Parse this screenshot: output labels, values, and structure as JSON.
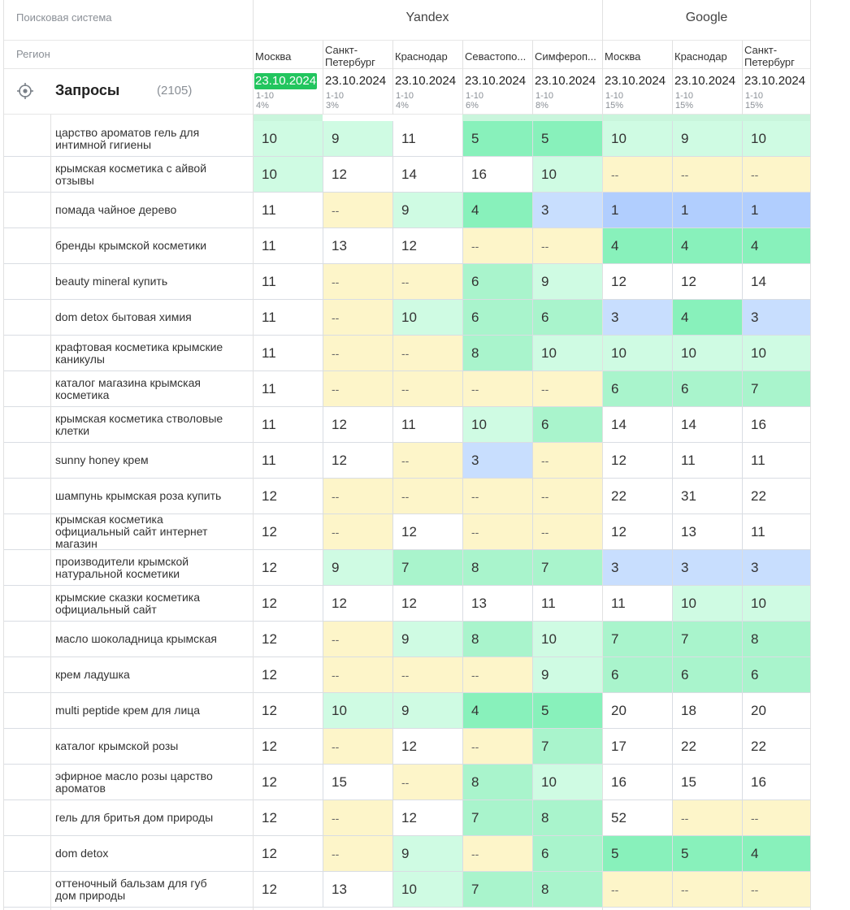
{
  "header": {
    "search_engine_label": "Поисковая система",
    "region_label": "Регион",
    "engines": [
      {
        "name": "Yandex"
      },
      {
        "name": "Google"
      }
    ],
    "regions": [
      "Москва",
      "Санкт-\nПетербург",
      "Краснодар",
      "Севастопо...",
      "Симфероп...",
      "Москва",
      "Краснодар",
      "Санкт-\nПетербург"
    ],
    "dates": [
      "23.10.2024",
      "23.10.2024",
      "23.10.2024",
      "23.10.2024",
      "23.10.2024",
      "23.10.2024",
      "23.10.2024",
      "23.10.2024"
    ],
    "ranges": [
      "1-10",
      "1-10",
      "1-10",
      "1-10",
      "1-10",
      "1-10",
      "1-10",
      "1-10"
    ],
    "percents": [
      "4%",
      "3%",
      "4%",
      "6%",
      "8%",
      "15%",
      "15%",
      "15%"
    ],
    "queries_title": "Запросы",
    "queries_count": "(2105)"
  },
  "colors": {
    "none": "#ffffff",
    "dash": "#fdf5c9",
    "top3": "#c8defe",
    "top1": "#b1cefe",
    "top5": "#88f1bb",
    "top7": "#a9f4cc",
    "top10": "#cffbe3",
    "strip": "#c9f5dc",
    "highlight": "#22c55e"
  },
  "rows": [
    {
      "keyword": "царство ароматов гель для интимной гигиены",
      "values": [
        "10",
        "9",
        "11",
        "5",
        "5",
        "10",
        "9",
        "10"
      ]
    },
    {
      "keyword": "крымская косметика с айвой отзывы",
      "values": [
        "10",
        "12",
        "14",
        "16",
        "10",
        "--",
        "--",
        "--"
      ]
    },
    {
      "keyword": "помада чайное дерево",
      "values": [
        "11",
        "--",
        "9",
        "4",
        "3",
        "1",
        "1",
        "1"
      ]
    },
    {
      "keyword": "бренды крымской косметики",
      "values": [
        "11",
        "13",
        "12",
        "--",
        "--",
        "4",
        "4",
        "4"
      ]
    },
    {
      "keyword": "beauty mineral купить",
      "values": [
        "11",
        "--",
        "--",
        "6",
        "9",
        "12",
        "12",
        "14"
      ]
    },
    {
      "keyword": "dom detox бытовая химия",
      "values": [
        "11",
        "--",
        "10",
        "6",
        "6",
        "3",
        "4",
        "3"
      ]
    },
    {
      "keyword": "крафтовая косметика крымские каникулы",
      "values": [
        "11",
        "--",
        "--",
        "8",
        "10",
        "10",
        "10",
        "10"
      ]
    },
    {
      "keyword": "каталог магазина крымская косметика",
      "values": [
        "11",
        "--",
        "--",
        "--",
        "--",
        "6",
        "6",
        "7"
      ]
    },
    {
      "keyword": "крымская косметика стволовые клетки",
      "values": [
        "11",
        "12",
        "11",
        "10",
        "6",
        "14",
        "14",
        "16"
      ]
    },
    {
      "keyword": "sunny honey крем",
      "values": [
        "11",
        "12",
        "--",
        "3",
        "--",
        "12",
        "11",
        "11"
      ]
    },
    {
      "keyword": "шампунь крымская роза купить",
      "values": [
        "12",
        "--",
        "--",
        "--",
        "--",
        "22",
        "31",
        "22"
      ]
    },
    {
      "keyword": "крымская косметика официальный сайт интернет магазин",
      "values": [
        "12",
        "--",
        "12",
        "--",
        "--",
        "12",
        "13",
        "11"
      ]
    },
    {
      "keyword": "производители крымской натуральной косметики",
      "values": [
        "12",
        "9",
        "7",
        "8",
        "7",
        "3",
        "3",
        "3"
      ]
    },
    {
      "keyword": "крымские сказки косметика официальный сайт",
      "values": [
        "12",
        "12",
        "12",
        "13",
        "11",
        "11",
        "10",
        "10"
      ]
    },
    {
      "keyword": "масло шоколадница крымская",
      "values": [
        "12",
        "--",
        "9",
        "8",
        "10",
        "7",
        "7",
        "8"
      ]
    },
    {
      "keyword": "крем ладушка",
      "values": [
        "12",
        "--",
        "--",
        "--",
        "9",
        "6",
        "6",
        "6"
      ]
    },
    {
      "keyword": "multi peptide крем для лица",
      "values": [
        "12",
        "10",
        "9",
        "4",
        "5",
        "20",
        "18",
        "20"
      ]
    },
    {
      "keyword": "каталог крымской розы",
      "values": [
        "12",
        "--",
        "12",
        "--",
        "7",
        "17",
        "22",
        "22"
      ]
    },
    {
      "keyword": "эфирное масло розы царство ароматов",
      "values": [
        "12",
        "15",
        "--",
        "8",
        "10",
        "16",
        "15",
        "16"
      ]
    },
    {
      "keyword": "гель для бритья дом природы",
      "values": [
        "12",
        "--",
        "12",
        "7",
        "8",
        "52",
        "--",
        "--"
      ]
    },
    {
      "keyword": "dom detox",
      "values": [
        "12",
        "--",
        "9",
        "--",
        "6",
        "5",
        "5",
        "4"
      ]
    },
    {
      "keyword": "оттеночный бальзам для губ дом природы",
      "values": [
        "12",
        "13",
        "10",
        "7",
        "8",
        "--",
        "--",
        "--"
      ]
    }
  ]
}
